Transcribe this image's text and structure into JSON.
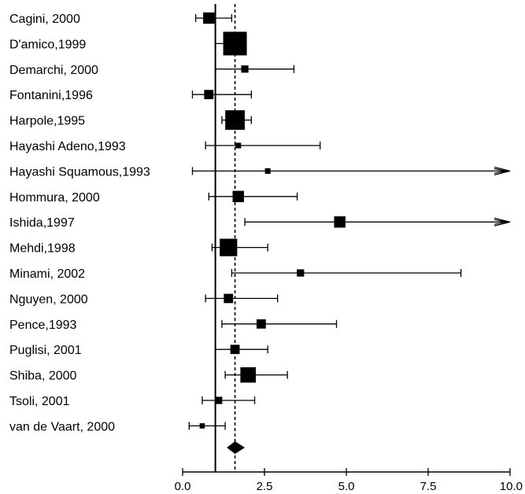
{
  "chart_data": {
    "type": "forest",
    "title": "",
    "xlabel": "",
    "ylabel": "",
    "xlim": [
      0,
      10
    ],
    "x_ticks": [
      0.0,
      2.5,
      5.0,
      7.5,
      10.0
    ],
    "x_tick_labels": [
      "0.0",
      "2.5",
      "5.0",
      "7.5",
      "10.0"
    ],
    "reference_line": 1.0,
    "pooled_estimate_line": 1.6,
    "studies": [
      {
        "label": "Cagini, 2000",
        "estimate": 0.8,
        "lower": 0.4,
        "upper": 1.5,
        "weight": 2
      },
      {
        "label": "D'amico,1999",
        "estimate": 1.6,
        "lower": 1.0,
        "upper": 1.9,
        "weight": 5
      },
      {
        "label": "Demarchi, 2000",
        "estimate": 1.9,
        "lower": 1.0,
        "upper": 3.4,
        "weight": 1
      },
      {
        "label": "Fontanini,1996",
        "estimate": 0.8,
        "lower": 0.3,
        "upper": 2.1,
        "weight": 1.5
      },
      {
        "label": "Harpole,1995",
        "estimate": 1.6,
        "lower": 1.2,
        "upper": 2.1,
        "weight": 4
      },
      {
        "label": "Hayashi Adeno,1993",
        "estimate": 1.7,
        "lower": 0.7,
        "upper": 4.2,
        "weight": 0.6
      },
      {
        "label": "Hayashi Squamous,1993",
        "estimate": 2.6,
        "lower": 0.3,
        "upper": 10.0,
        "weight": 0.6,
        "upper_truncated": true
      },
      {
        "label": "Hommura, 2000",
        "estimate": 1.7,
        "lower": 0.8,
        "upper": 3.5,
        "weight": 2
      },
      {
        "label": "Ishida,1997",
        "estimate": 4.8,
        "lower": 1.9,
        "upper": 10.0,
        "weight": 2,
        "upper_truncated": true
      },
      {
        "label": "Mehdi,1998",
        "estimate": 1.4,
        "lower": 0.9,
        "upper": 2.6,
        "weight": 3.5
      },
      {
        "label": "Minami, 2002",
        "estimate": 3.6,
        "lower": 1.5,
        "upper": 8.5,
        "weight": 1
      },
      {
        "label": "Nguyen, 2000",
        "estimate": 1.4,
        "lower": 0.7,
        "upper": 2.9,
        "weight": 1.5
      },
      {
        "label": "Pence,1993",
        "estimate": 2.4,
        "lower": 1.2,
        "upper": 4.7,
        "weight": 1.5
      },
      {
        "label": "Puglisi, 2001",
        "estimate": 1.6,
        "lower": 1.0,
        "upper": 2.6,
        "weight": 1.5
      },
      {
        "label": "Shiba, 2000",
        "estimate": 2.0,
        "lower": 1.3,
        "upper": 3.2,
        "weight": 3
      },
      {
        "label": "Tsoli, 2001",
        "estimate": 1.1,
        "lower": 0.6,
        "upper": 2.2,
        "weight": 1
      },
      {
        "label": "van de Vaart, 2000",
        "estimate": 0.6,
        "lower": 0.2,
        "upper": 1.3,
        "weight": 0.5
      }
    ],
    "pooled": {
      "estimate": 1.6,
      "lower": 1.35,
      "upper": 1.9
    }
  }
}
